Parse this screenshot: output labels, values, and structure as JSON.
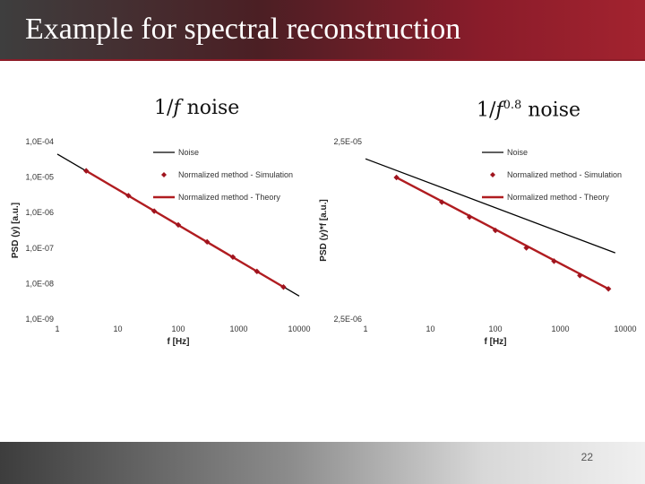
{
  "slide": {
    "title": "Example for spectral reconstruction",
    "page_number": "22",
    "colors": {
      "title_bar": "#8a1c2a",
      "title_bar_dark": "#3e3e3e",
      "theory_line": "#b01c20",
      "noise_line": "#000000"
    }
  },
  "captions": {
    "left": {
      "prefix": "1/",
      "var": "f",
      "suffix": " noise"
    },
    "right": {
      "prefix": "1/",
      "var": "f",
      "exponent": "0.8",
      "suffix": " noise"
    }
  },
  "chart_data": [
    {
      "type": "line",
      "xlabel": "f [Hz]",
      "ylabel": "PSD (y) [a.u.]",
      "xscale": "log",
      "yscale": "log",
      "xlim": [
        1,
        10000
      ],
      "ylim": [
        1e-09,
        0.0001
      ],
      "x_ticks": [
        "1",
        "10",
        "100",
        "1000",
        "10000"
      ],
      "x_tick_values": [
        1,
        10,
        100,
        1000,
        10000
      ],
      "y_ticks": [
        "1,0E-09",
        "1,0E-08",
        "1,0E-07",
        "1,0E-06",
        "1,0E-05",
        "1,0E-04"
      ],
      "y_tick_values": [
        1e-09,
        1e-08,
        1e-07,
        1e-06,
        1e-05,
        0.0001
      ],
      "legend_position": "top-right",
      "series": [
        {
          "name": "Noise",
          "style": "line",
          "color": "#000000",
          "x": [
            1,
            10000
          ],
          "y": [
            4.46e-05,
            4.46e-09
          ]
        },
        {
          "name": "Normalized method - Simulation",
          "style": "markers",
          "color": "#a0141e",
          "x": [
            3,
            15,
            40,
            100,
            300,
            800,
            2000,
            5500
          ],
          "y": [
            1.5e-05,
            3e-06,
            1.1e-06,
            4.5e-07,
            1.5e-07,
            5.6e-08,
            2.2e-08,
            8e-09
          ]
        },
        {
          "name": "Normalized method - Theory",
          "style": "line",
          "color": "#b01c20",
          "x": [
            3,
            5500
          ],
          "y": [
            1.5e-05,
            8e-09
          ]
        }
      ]
    },
    {
      "type": "line",
      "xlabel": "f [Hz]",
      "ylabel": "PSD (y)*f [a.u.]",
      "xscale": "log",
      "yscale": "log",
      "xlim": [
        1,
        10000
      ],
      "ylim": [
        2.5e-06,
        2.5e-05
      ],
      "x_ticks": [
        "1",
        "10",
        "100",
        "1000",
        "10000"
      ],
      "x_tick_values": [
        1,
        10,
        100,
        1000,
        10000
      ],
      "y_ticks": [
        "2,5E-06",
        "2,5E-05"
      ],
      "y_tick_values": [
        2.5e-06,
        2.5e-05
      ],
      "legend_position": "top-right",
      "series": [
        {
          "name": "Noise",
          "style": "line",
          "color": "#000000",
          "x": [
            1,
            7000
          ],
          "y": [
            2e-05,
            5.9e-06
          ]
        },
        {
          "name": "Normalized method - Simulation",
          "style": "markers",
          "color": "#a0141e",
          "x": [
            3,
            15,
            40,
            100,
            300,
            800,
            2000,
            5500
          ],
          "y": [
            1.57e-05,
            1.14e-05,
            9.4e-06,
            7.9e-06,
            6.3e-06,
            5.3e-06,
            4.4e-06,
            3.7e-06
          ]
        },
        {
          "name": "Normalized method - Theory",
          "style": "line",
          "color": "#b01c20",
          "x": [
            3,
            5500
          ],
          "y": [
            1.57e-05,
            3.7e-06
          ]
        }
      ]
    }
  ]
}
